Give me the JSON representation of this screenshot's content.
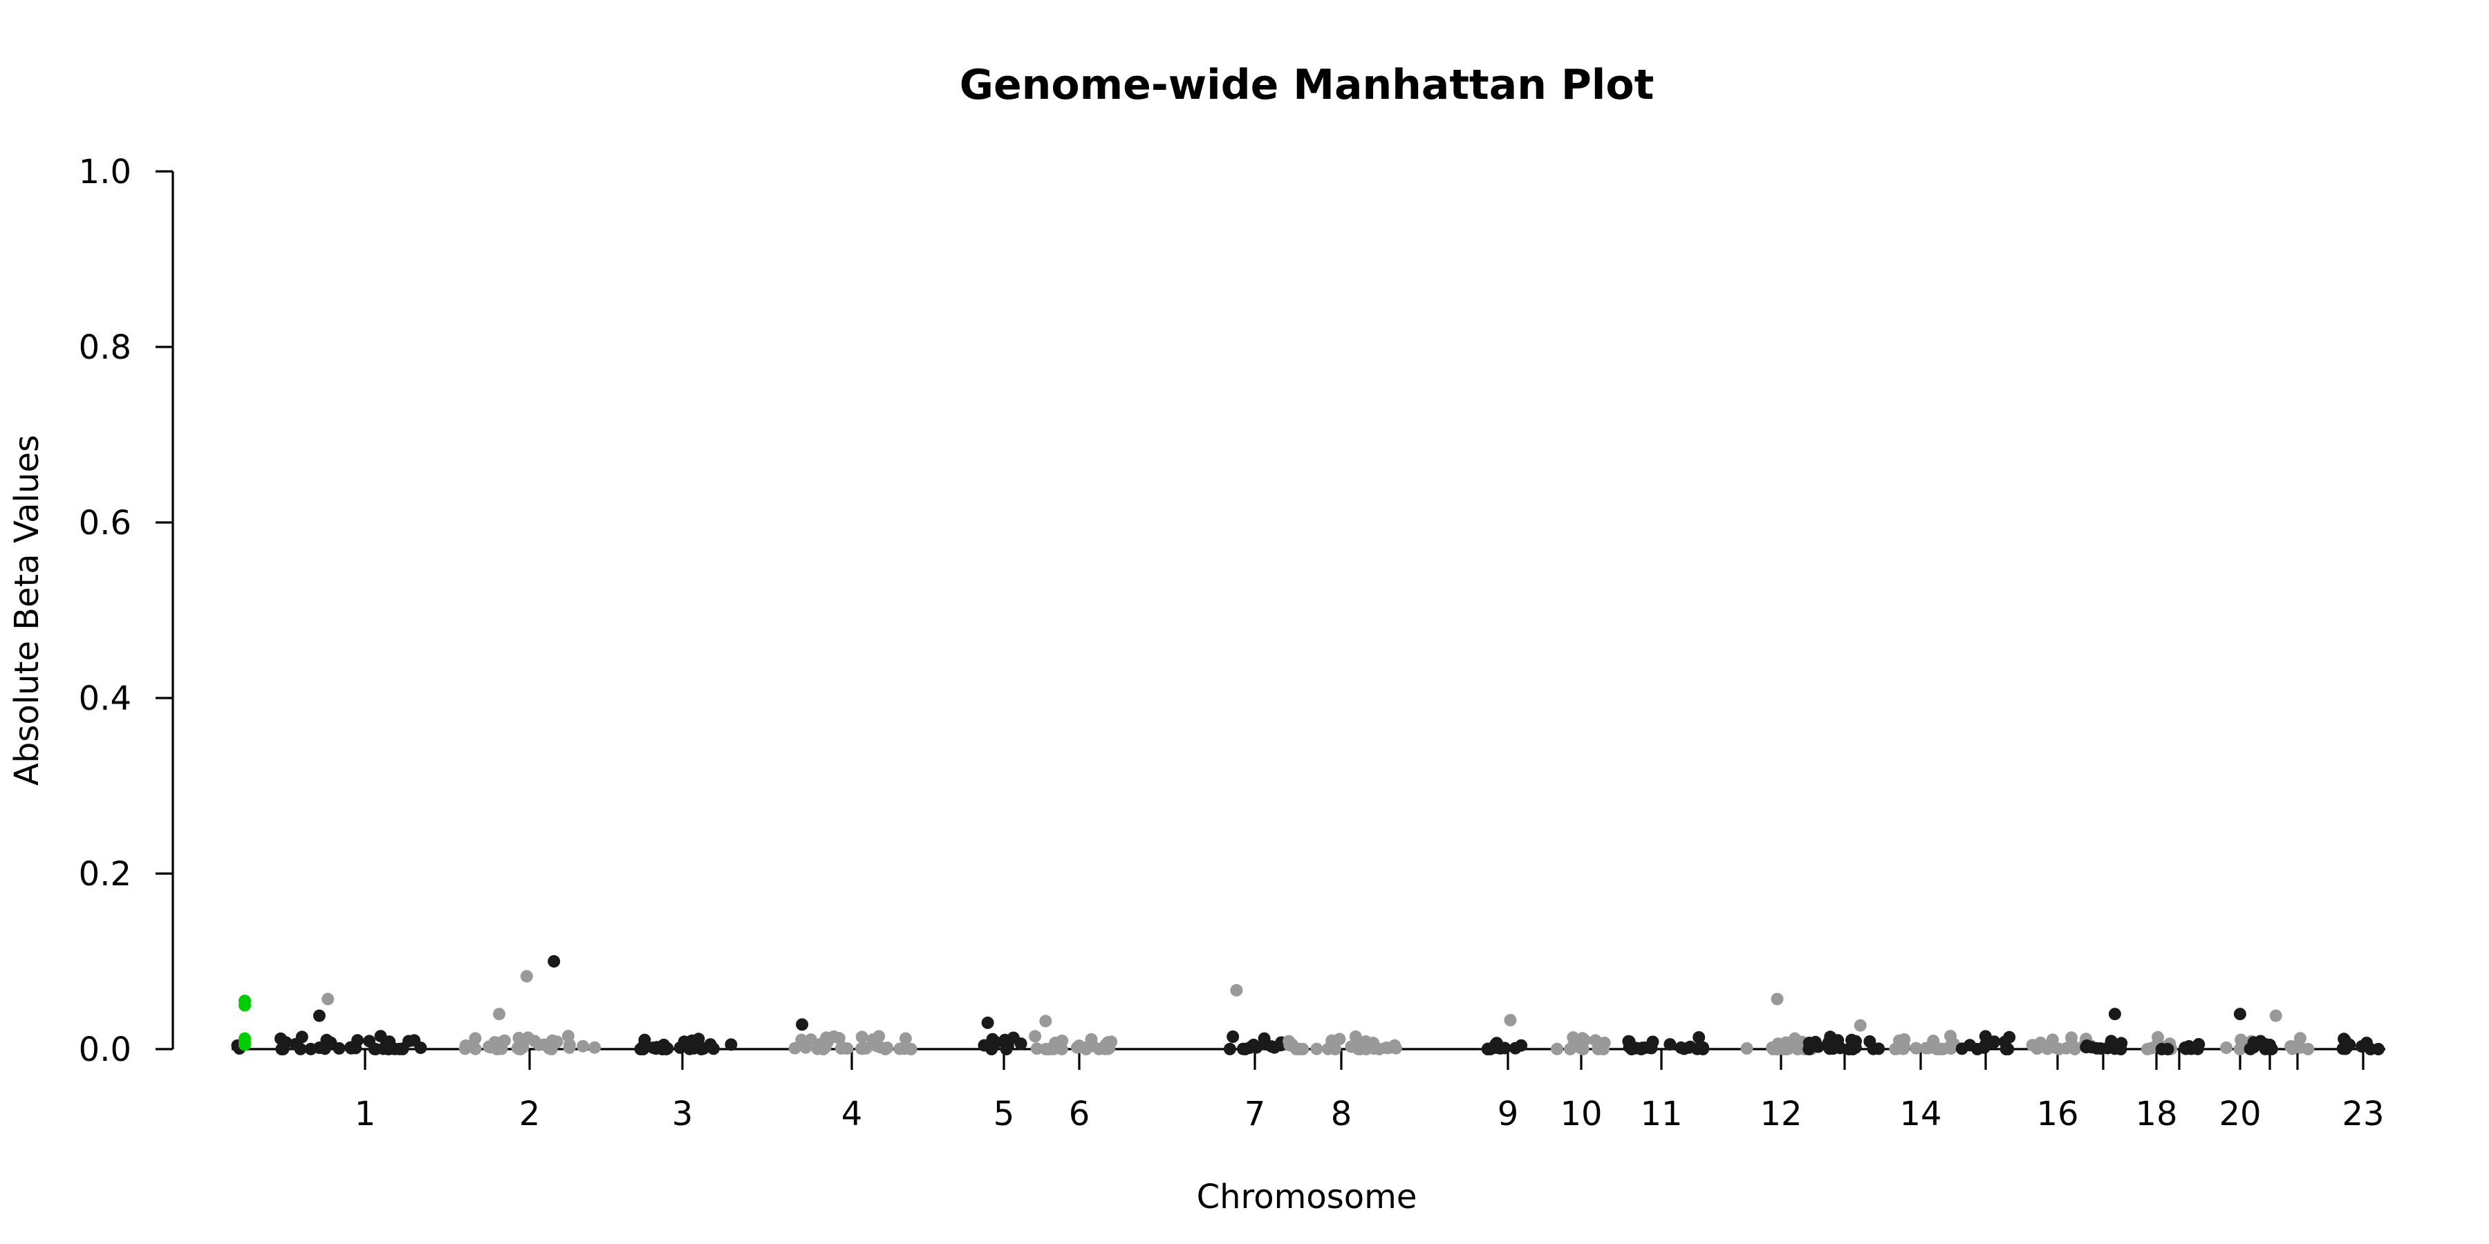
{
  "chart_data": {
    "type": "scatter",
    "title": "Genome-wide Manhattan Plot",
    "xlabel": "Chromosome",
    "ylabel": "Absolute Beta Values",
    "ylim": [
      0,
      1.0
    ],
    "y_ticks": [
      "0.0",
      "0.2",
      "0.4",
      "0.6",
      "0.8",
      "1.0"
    ],
    "x_ticks": [
      "1",
      "2",
      "3",
      "4",
      "5",
      "6",
      "7",
      "8",
      "9",
      "10",
      "11",
      "12",
      "14",
      "16",
      "18",
      "20",
      "23"
    ],
    "colors": {
      "dark": "#1a1a1a",
      "light": "#999999",
      "highlight": "#00cc00"
    },
    "grid": false,
    "legend": "none",
    "highlighted_points": [
      {
        "chromosome": "0",
        "beta": 0.055
      },
      {
        "chromosome": "0",
        "beta": 0.05
      },
      {
        "chromosome": "0",
        "beta": 0.012
      },
      {
        "chromosome": "0",
        "beta": 0.008
      },
      {
        "chromosome": "0",
        "beta": 0.005
      }
    ],
    "notable_points": [
      {
        "chromosome": "1",
        "beta": 0.038,
        "group": "dark"
      },
      {
        "chromosome": "1",
        "beta": 0.057,
        "group": "light"
      },
      {
        "chromosome": "2",
        "beta": 0.083,
        "group": "light"
      },
      {
        "chromosome": "2",
        "beta": 0.04,
        "group": "light"
      },
      {
        "chromosome": "2",
        "beta": 0.1,
        "group": "dark"
      },
      {
        "chromosome": "4",
        "beta": 0.028,
        "group": "dark"
      },
      {
        "chromosome": "5",
        "beta": 0.03,
        "group": "dark"
      },
      {
        "chromosome": "6",
        "beta": 0.032,
        "group": "light"
      },
      {
        "chromosome": "7",
        "beta": 0.067,
        "group": "light"
      },
      {
        "chromosome": "9",
        "beta": 0.033,
        "group": "light"
      },
      {
        "chromosome": "12",
        "beta": 0.057,
        "group": "light"
      },
      {
        "chromosome": "13",
        "beta": 0.027,
        "group": "light"
      },
      {
        "chromosome": "17",
        "beta": 0.04,
        "group": "dark"
      },
      {
        "chromosome": "20",
        "beta": 0.04,
        "group": "dark"
      },
      {
        "chromosome": "21",
        "beta": 0.038,
        "group": "light"
      }
    ]
  }
}
